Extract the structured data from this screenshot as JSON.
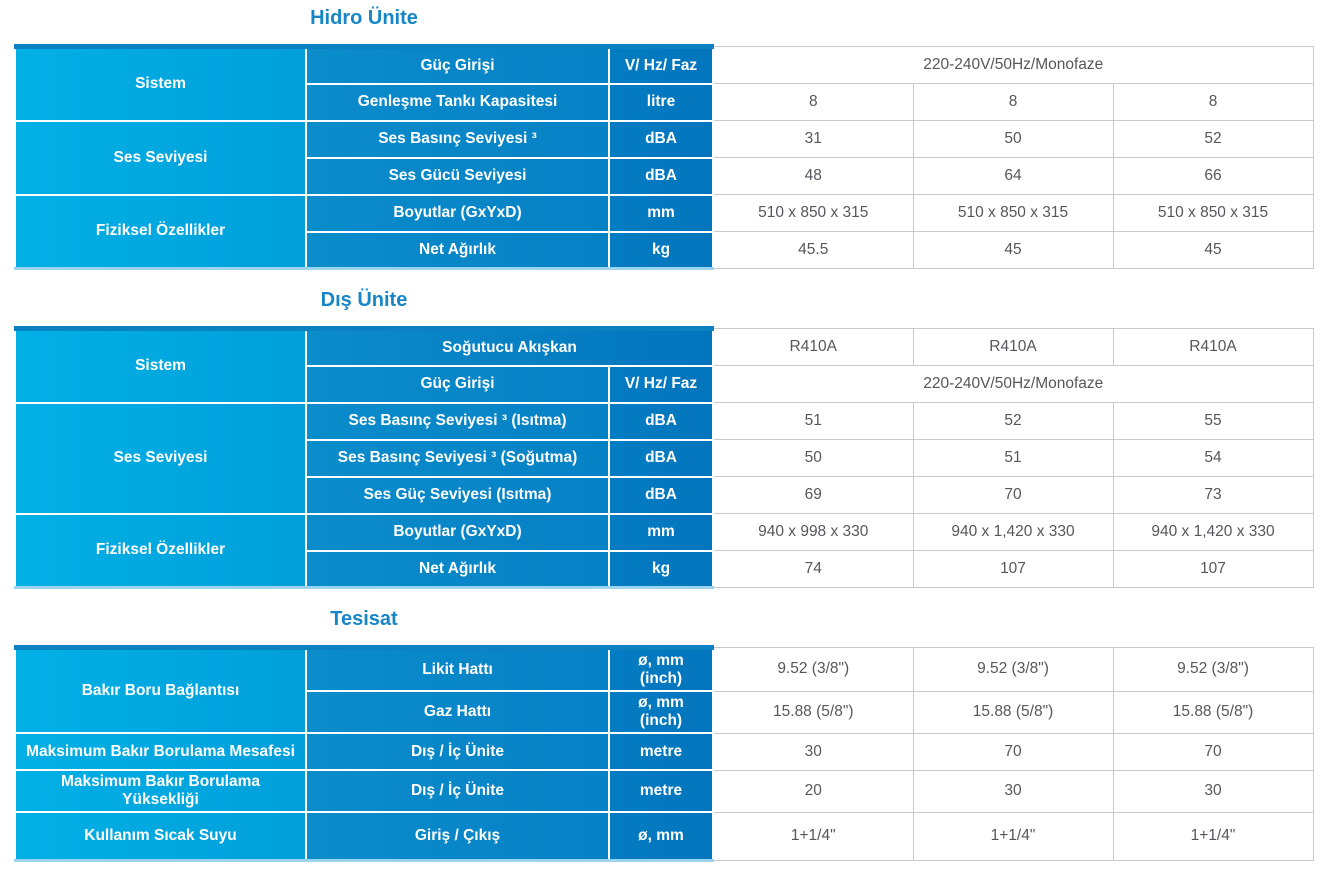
{
  "colors": {
    "title_blue": "#1786c7",
    "group_cyan": "#02b0e6",
    "spec_blue": "#0b8ccb",
    "unit_blue": "#047cc2",
    "top_strip": "#0b81c2",
    "data_text": "#55575c",
    "grid_gray": "#c9c9c9"
  },
  "t1": {
    "title": "Hidro Ünite",
    "groups": [
      "Sistem",
      "Ses Seviyesi",
      "Fiziksel Özellikler"
    ],
    "rows": [
      {
        "spec": "Güç Girişi",
        "unit": "V/ Hz/ Faz",
        "span": "220-240V/50Hz/Monofaze"
      },
      {
        "spec": "Genleşme Tankı Kapasitesi",
        "unit": "litre",
        "v": [
          "8",
          "8",
          "8"
        ]
      },
      {
        "spec": "Ses Basınç Seviyesi ³",
        "unit": "dBA",
        "v": [
          "31",
          "50",
          "52"
        ]
      },
      {
        "spec": "Ses Gücü Seviyesi",
        "unit": "dBA",
        "v": [
          "48",
          "64",
          "66"
        ]
      },
      {
        "spec": "Boyutlar (GxYxD)",
        "unit": "mm",
        "v": [
          "510 x 850 x 315",
          "510 x 850 x 315",
          "510 x 850 x 315"
        ]
      },
      {
        "spec": "Net Ağırlık",
        "unit": "kg",
        "v": [
          "45.5",
          "45",
          "45"
        ]
      }
    ]
  },
  "t2": {
    "title": "Dış Ünite",
    "groups": [
      "Sistem",
      "Ses Seviyesi",
      "Fiziksel Özellikler"
    ],
    "rows": [
      {
        "spec": "Soğutucu Akışkan",
        "v": [
          "R410A",
          "R410A",
          "R410A"
        ]
      },
      {
        "spec": "Güç Girişi",
        "unit": "V/ Hz/ Faz",
        "span": "220-240V/50Hz/Monofaze"
      },
      {
        "spec": "Ses Basınç Seviyesi ³ (Isıtma)",
        "unit": "dBA",
        "v": [
          "51",
          "52",
          "55"
        ]
      },
      {
        "spec": "Ses Basınç Seviyesi ³ (Soğutma)",
        "unit": "dBA",
        "v": [
          "50",
          "51",
          "54"
        ]
      },
      {
        "spec": "Ses Güç Seviyesi (Isıtma)",
        "unit": "dBA",
        "v": [
          "69",
          "70",
          "73"
        ]
      },
      {
        "spec": "Boyutlar (GxYxD)",
        "unit": "mm",
        "v": [
          "940 x 998 x 330",
          "940 x 1,420 x 330",
          "940 x 1,420 x 330"
        ]
      },
      {
        "spec": "Net Ağırlık",
        "unit": "kg",
        "v": [
          "74",
          "107",
          "107"
        ]
      }
    ]
  },
  "t3": {
    "title": "Tesisat",
    "groups": [
      "Bakır Boru Bağlantısı",
      "Maksimum Bakır Borulama Mesafesi",
      "Maksimum Bakır Borulama Yüksekliği",
      "Kullanım Sıcak Suyu"
    ],
    "rows": [
      {
        "spec": "Likit Hattı",
        "unit": "ø, mm (inch)",
        "v": [
          "9.52 (3/8\")",
          "9.52 (3/8\")",
          "9.52 (3/8\")"
        ]
      },
      {
        "spec": "Gaz Hattı",
        "unit": "ø, mm (inch)",
        "v": [
          "15.88 (5/8\")",
          "15.88 (5/8\")",
          "15.88 (5/8\")"
        ]
      },
      {
        "spec": "Dış / İç Ünite",
        "unit": "metre",
        "v": [
          "30",
          "70",
          "70"
        ]
      },
      {
        "spec": "Dış / İç Ünite",
        "unit": "metre",
        "v": [
          "20",
          "30",
          "30"
        ]
      },
      {
        "spec": "Giriş / Çıkış",
        "unit": "ø, mm",
        "v": [
          "1+1/4\"",
          "1+1/4\"",
          "1+1/4\""
        ]
      }
    ]
  }
}
